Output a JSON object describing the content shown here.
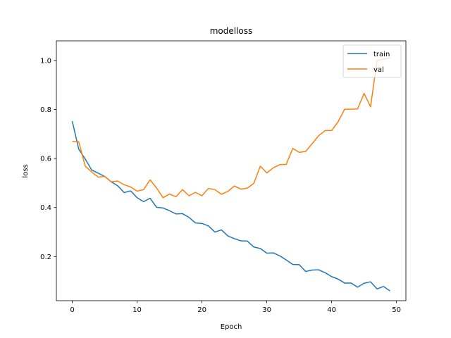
{
  "chart_data": {
    "type": "line",
    "title": "modelloss",
    "xlabel": "Epoch",
    "ylabel": "loss",
    "xlim": [
      -2.45,
      51.45
    ],
    "ylim": [
      0.02,
      1.08
    ],
    "xticks": [
      0,
      10,
      20,
      30,
      40,
      50
    ],
    "yticks": [
      0.2,
      0.4,
      0.6,
      0.8,
      1.0
    ],
    "xtick_labels": [
      "0",
      "10",
      "20",
      "30",
      "40",
      "50"
    ],
    "ytick_labels": [
      "0.2",
      "0.4",
      "0.6",
      "0.8",
      "1.0"
    ],
    "grid": false,
    "legend_position": "top-right",
    "x": [
      0,
      1,
      2,
      3,
      4,
      5,
      6,
      7,
      8,
      9,
      10,
      11,
      12,
      13,
      14,
      15,
      16,
      17,
      18,
      19,
      20,
      21,
      22,
      23,
      24,
      25,
      26,
      27,
      28,
      29,
      30,
      31,
      32,
      33,
      34,
      35,
      36,
      37,
      38,
      39,
      40,
      41,
      42,
      43,
      44,
      45,
      46,
      47,
      48,
      49
    ],
    "series": [
      {
        "name": "train",
        "color": "#1f77b4",
        "values": [
          0.752,
          0.638,
          0.598,
          0.553,
          0.54,
          0.527,
          0.505,
          0.489,
          0.461,
          0.468,
          0.44,
          0.424,
          0.438,
          0.401,
          0.398,
          0.387,
          0.374,
          0.375,
          0.36,
          0.337,
          0.335,
          0.325,
          0.3,
          0.309,
          0.284,
          0.273,
          0.264,
          0.263,
          0.239,
          0.233,
          0.214,
          0.215,
          0.203,
          0.186,
          0.168,
          0.167,
          0.139,
          0.145,
          0.146,
          0.134,
          0.118,
          0.108,
          0.092,
          0.092,
          0.075,
          0.091,
          0.097,
          0.068,
          0.078,
          0.06
        ]
      },
      {
        "name": "val",
        "color": "#ff7f0e",
        "values": [
          0.67,
          0.668,
          0.569,
          0.545,
          0.524,
          0.527,
          0.505,
          0.508,
          0.493,
          0.484,
          0.467,
          0.473,
          0.513,
          0.48,
          0.44,
          0.455,
          0.444,
          0.473,
          0.448,
          0.462,
          0.448,
          0.478,
          0.473,
          0.454,
          0.466,
          0.488,
          0.475,
          0.479,
          0.499,
          0.569,
          0.541,
          0.562,
          0.575,
          0.576,
          0.641,
          0.625,
          0.629,
          0.661,
          0.693,
          0.714,
          0.714,
          0.75,
          0.801,
          0.801,
          0.802,
          0.866,
          0.811,
          1.0,
          1.005,
          1.01
        ]
      }
    ]
  }
}
